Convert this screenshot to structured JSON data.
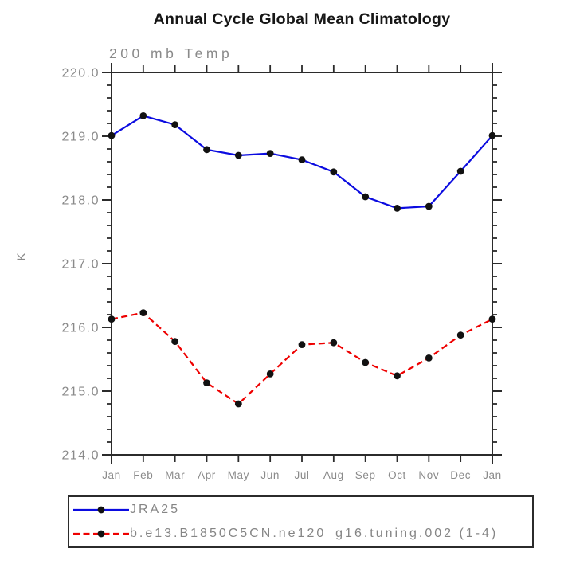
{
  "chart_data": {
    "type": "line",
    "title": "Annual Cycle Global Mean Climatology",
    "subtitle": "200 mb Temp",
    "ylabel": "K",
    "xlabel": "",
    "categories": [
      "Jan",
      "Feb",
      "Mar",
      "Apr",
      "May",
      "Jun",
      "Jul",
      "Aug",
      "Sep",
      "Oct",
      "Nov",
      "Dec",
      "Jan"
    ],
    "ylim": [
      214.0,
      220.0
    ],
    "y_major_step": 1.0,
    "y_minor_step": 0.2,
    "y_tick_labels": [
      "220.0",
      "219.0",
      "218.0",
      "217.0",
      "216.0",
      "215.0",
      "214.0"
    ],
    "grid": false,
    "legend_position": "bottom-left",
    "axis_color": "#2b2b2b",
    "tick_label_color": "#8a8a8a",
    "series": [
      {
        "name": "JRA25",
        "color": "#0b0be0",
        "style": "solid",
        "marker": "circle",
        "marker_color": "#111111",
        "values": [
          219.01,
          219.32,
          219.18,
          218.79,
          218.7,
          218.73,
          218.63,
          218.44,
          218.05,
          217.87,
          217.9,
          218.45,
          219.01
        ]
      },
      {
        "name": "b.e13.B1850C5CN.ne120_g16.tuning.002 (1-4)",
        "color": "#ee0000",
        "style": "dashed",
        "marker": "circle",
        "marker_color": "#111111",
        "values": [
          216.13,
          216.23,
          215.78,
          215.13,
          214.8,
          215.27,
          215.73,
          215.76,
          215.45,
          215.24,
          215.52,
          215.88,
          216.13
        ]
      }
    ]
  }
}
